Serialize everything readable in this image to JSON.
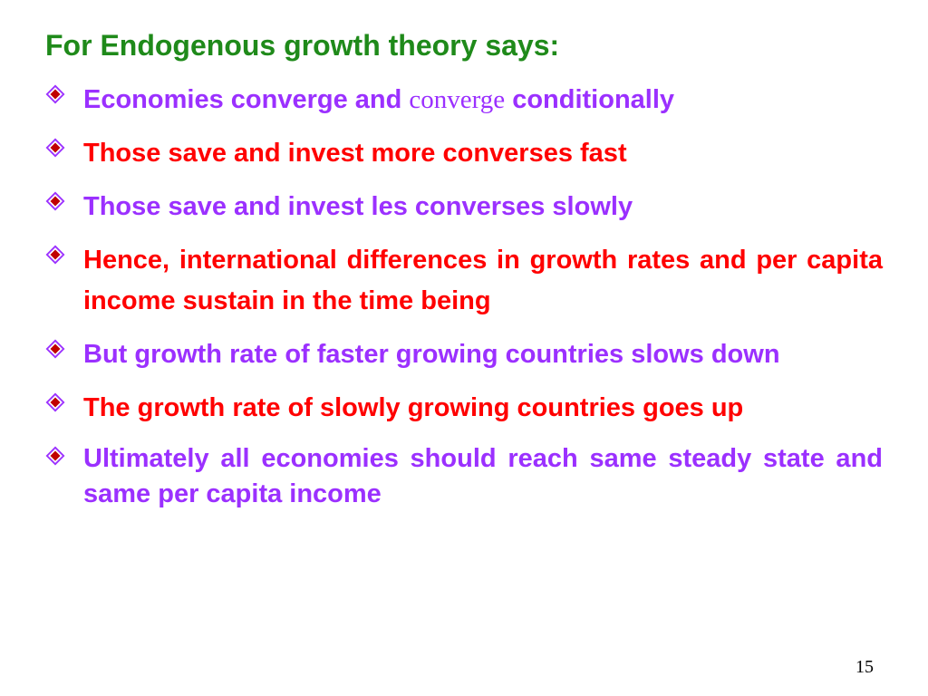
{
  "colors": {
    "title": "#1f8a1a",
    "purple": "#9b30ff",
    "red": "#ff0000",
    "bullet_fill": "#c00000",
    "bullet_stroke": "#9b30ff"
  },
  "fontsize": {
    "title": 32,
    "body": 29,
    "bullet": 30,
    "pagenum": 20
  },
  "title": "For Endogenous growth theory says:",
  "items": [
    {
      "color": "purple",
      "justify": false,
      "tight": false,
      "html": "Economies converge and <span class=\"serif\">converge</span> conditionally"
    },
    {
      "color": "red",
      "justify": false,
      "tight": false,
      "html": "Those save and invest more converses fast"
    },
    {
      "color": "purple",
      "justify": false,
      "tight": false,
      "html": "Those save and invest les converses slowly"
    },
    {
      "color": "red",
      "justify": true,
      "tight": false,
      "html": "Hence, international differences in growth rates and per capita income sustain in the time being"
    },
    {
      "color": "purple",
      "justify": true,
      "tight": false,
      "html": "But growth rate of faster growing countries slows down"
    },
    {
      "color": "red",
      "justify": true,
      "tight": false,
      "html": "The growth rate of slowly growing countries goes up"
    },
    {
      "color": "purple",
      "justify": true,
      "tight": true,
      "html": "Ultimately all economies should reach same steady state and same per capita income"
    }
  ],
  "page_number": "15"
}
